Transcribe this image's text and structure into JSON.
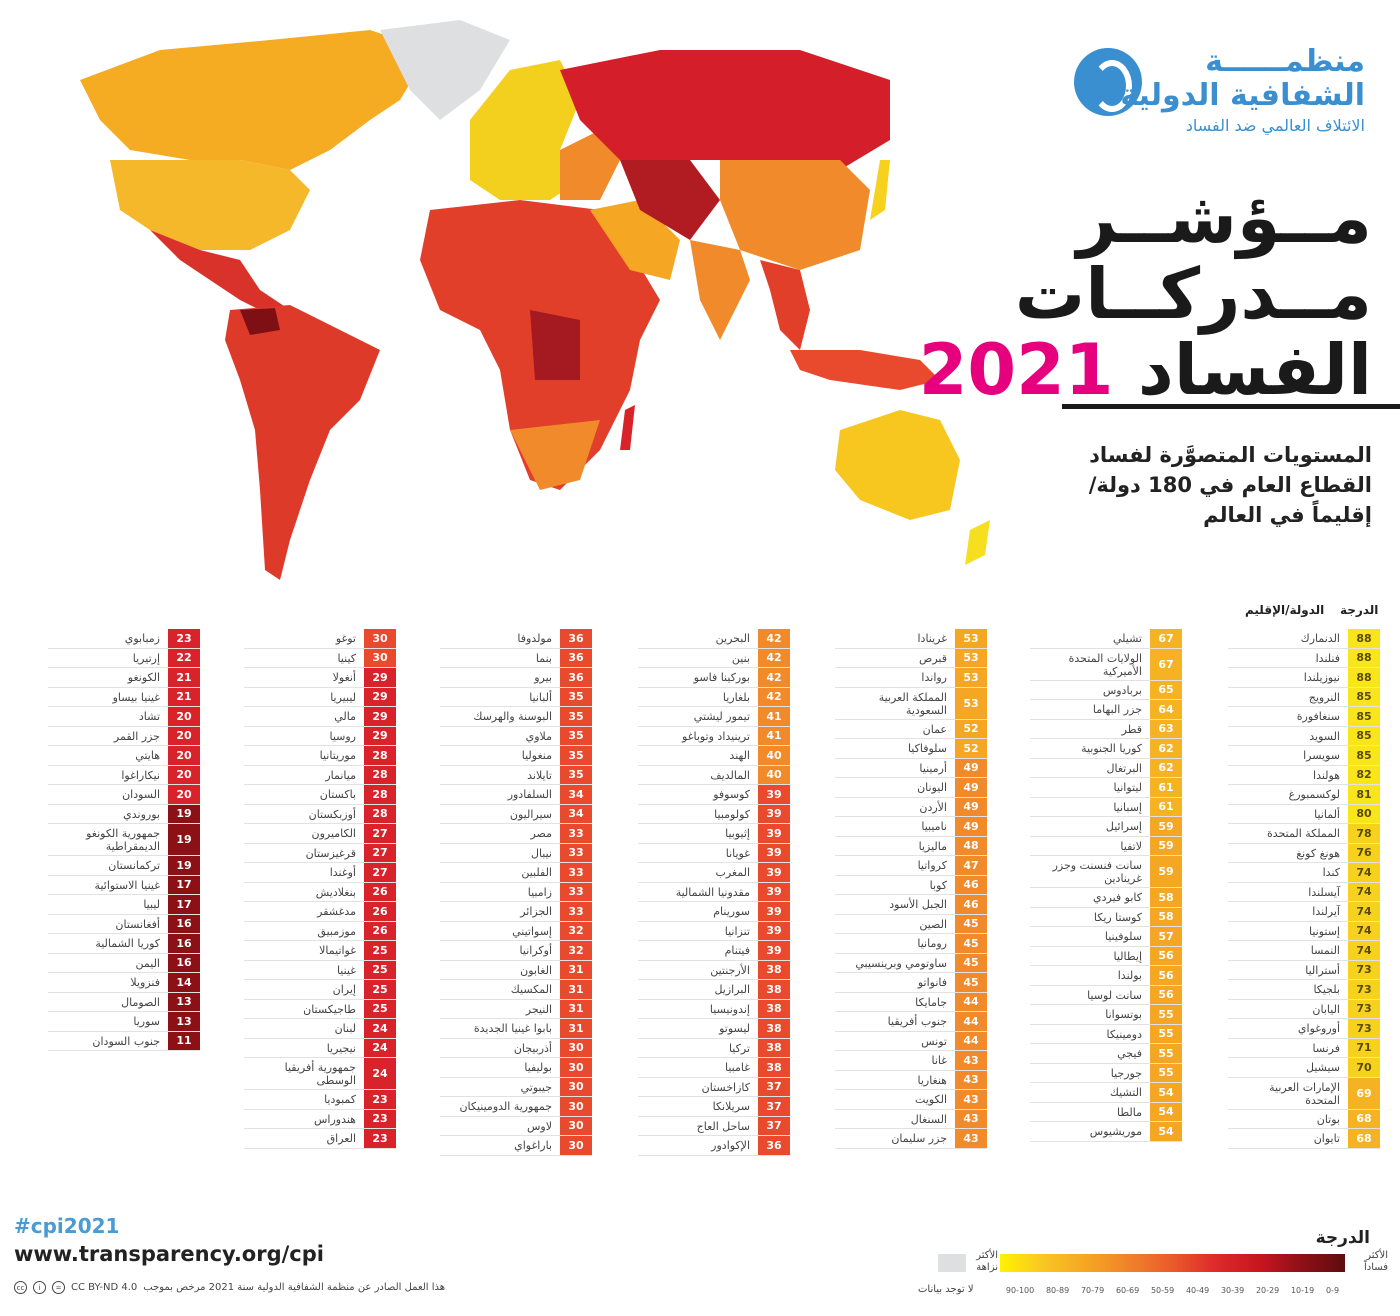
{
  "logo": {
    "line1": "منظمــــــة",
    "line2": "الشفافية الدولية",
    "line3": "الائتلاف العالمي ضد الفساد"
  },
  "title": {
    "line1": "مــؤشــر",
    "line2": "مــدركــات",
    "line3": "الفساد",
    "year": "2021"
  },
  "subtitle": "المستويات المتصوَّرة لفساد القطاع العام في 180 دولة/ إقليماً في العالم",
  "table_headers": {
    "score": "الدرجة",
    "country": "الدولة/الإقليم"
  },
  "score_colors": {
    "80-89": "#f8e51c",
    "70-79": "#f6d21f",
    "60-69": "#f5b324",
    "50-59": "#f5a623",
    "40-49": "#f08a2b",
    "30-39": "#e9492c",
    "20-29": "#d9232b",
    "10-19": "#8c1117",
    "0-9": "#5e0c10"
  },
  "columns": [
    [
      {
        "n": "الدنمارك",
        "s": 88
      },
      {
        "n": "فنلندا",
        "s": 88
      },
      {
        "n": "نيوزيلندا",
        "s": 88
      },
      {
        "n": "النرويج",
        "s": 85
      },
      {
        "n": "سنغافورة",
        "s": 85
      },
      {
        "n": "السويد",
        "s": 85
      },
      {
        "n": "سويسرا",
        "s": 85
      },
      {
        "n": "هولندا",
        "s": 82
      },
      {
        "n": "لوكسمبورغ",
        "s": 81
      },
      {
        "n": "ألمانيا",
        "s": 80
      },
      {
        "n": "المملكة المتحدة",
        "s": 78
      },
      {
        "n": "هونغ كونغ",
        "s": 76
      },
      {
        "n": "كندا",
        "s": 74
      },
      {
        "n": "آيسلندا",
        "s": 74
      },
      {
        "n": "آيرلندا",
        "s": 74
      },
      {
        "n": "إستونيا",
        "s": 74
      },
      {
        "n": "النمسا",
        "s": 74
      },
      {
        "n": "أستراليا",
        "s": 73
      },
      {
        "n": "بلجيكا",
        "s": 73
      },
      {
        "n": "اليابان",
        "s": 73
      },
      {
        "n": "أوروغواي",
        "s": 73
      },
      {
        "n": "فرنسا",
        "s": 71
      },
      {
        "n": "سيشيل",
        "s": 70
      },
      {
        "n": "الإمارات العربية المتحدة",
        "s": 69
      },
      {
        "n": "بوتان",
        "s": 68
      },
      {
        "n": "تايوان",
        "s": 68
      }
    ],
    [
      {
        "n": "تشيلي",
        "s": 67
      },
      {
        "n": "الولايات المتحدة الأميركية",
        "s": 67
      },
      {
        "n": "بربادوس",
        "s": 65
      },
      {
        "n": "جزر البهاما",
        "s": 64
      },
      {
        "n": "قطر",
        "s": 63
      },
      {
        "n": "كوريا الجنوبية",
        "s": 62
      },
      {
        "n": "البرتغال",
        "s": 62
      },
      {
        "n": "ليتوانيا",
        "s": 61
      },
      {
        "n": "إسبانيا",
        "s": 61
      },
      {
        "n": "إسرائيل",
        "s": 59
      },
      {
        "n": "لاتفيا",
        "s": 59
      },
      {
        "n": "سانت فنسنت وجزر غرينادين",
        "s": 59
      },
      {
        "n": "كابو فيردي",
        "s": 58
      },
      {
        "n": "كوستا ريكا",
        "s": 58
      },
      {
        "n": "سلوفينيا",
        "s": 57
      },
      {
        "n": "إيطاليا",
        "s": 56
      },
      {
        "n": "بولندا",
        "s": 56
      },
      {
        "n": "سانت لوسيا",
        "s": 56
      },
      {
        "n": "بوتسوانا",
        "s": 55
      },
      {
        "n": "دومينيكا",
        "s": 55
      },
      {
        "n": "فيجي",
        "s": 55
      },
      {
        "n": "جورجيا",
        "s": 55
      },
      {
        "n": "التشيك",
        "s": 54
      },
      {
        "n": "مالطا",
        "s": 54
      },
      {
        "n": "موريشيوس",
        "s": 54
      }
    ],
    [
      {
        "n": "غرينادا",
        "s": 53
      },
      {
        "n": "قبرص",
        "s": 53
      },
      {
        "n": "رواندا",
        "s": 53
      },
      {
        "n": "المملكة العربية السعودية",
        "s": 53
      },
      {
        "n": "عمان",
        "s": 52
      },
      {
        "n": "سلوفاكيا",
        "s": 52
      },
      {
        "n": "أرمينيا",
        "s": 49
      },
      {
        "n": "اليونان",
        "s": 49
      },
      {
        "n": "الأردن",
        "s": 49
      },
      {
        "n": "ناميبيا",
        "s": 49
      },
      {
        "n": "ماليزيا",
        "s": 48
      },
      {
        "n": "كرواتيا",
        "s": 47
      },
      {
        "n": "كوبا",
        "s": 46
      },
      {
        "n": "الجبل الأسود",
        "s": 46
      },
      {
        "n": "الصين",
        "s": 45
      },
      {
        "n": "رومانيا",
        "s": 45
      },
      {
        "n": "ساوتومي وبرينسيبي",
        "s": 45
      },
      {
        "n": "فانواتو",
        "s": 45
      },
      {
        "n": "جامايكا",
        "s": 44
      },
      {
        "n": "جنوب أفريقيا",
        "s": 44
      },
      {
        "n": "تونس",
        "s": 44
      },
      {
        "n": "غانا",
        "s": 43
      },
      {
        "n": "هنغاريا",
        "s": 43
      },
      {
        "n": "الكويت",
        "s": 43
      },
      {
        "n": "السنغال",
        "s": 43
      },
      {
        "n": "جزر سليمان",
        "s": 43
      }
    ],
    [
      {
        "n": "البحرين",
        "s": 42
      },
      {
        "n": "بنين",
        "s": 42
      },
      {
        "n": "بوركينا فاسو",
        "s": 42
      },
      {
        "n": "بلغاريا",
        "s": 42
      },
      {
        "n": "تيمور ليشتي",
        "s": 41
      },
      {
        "n": "ترينيداد وتوباغو",
        "s": 41
      },
      {
        "n": "الهند",
        "s": 40
      },
      {
        "n": "المالديف",
        "s": 40
      },
      {
        "n": "كوسوفو",
        "s": 39
      },
      {
        "n": "كولومبيا",
        "s": 39
      },
      {
        "n": "إثيوبيا",
        "s": 39
      },
      {
        "n": "غويانا",
        "s": 39
      },
      {
        "n": "المغرب",
        "s": 39
      },
      {
        "n": "مقدونيا الشمالية",
        "s": 39
      },
      {
        "n": "سورينام",
        "s": 39
      },
      {
        "n": "تنزانيا",
        "s": 39
      },
      {
        "n": "فيتنام",
        "s": 39
      },
      {
        "n": "الأرجنتين",
        "s": 38
      },
      {
        "n": "البرازيل",
        "s": 38
      },
      {
        "n": "إندونيسيا",
        "s": 38
      },
      {
        "n": "ليسوتو",
        "s": 38
      },
      {
        "n": "تركيا",
        "s": 38
      },
      {
        "n": "غامبيا",
        "s": 38
      },
      {
        "n": "كازاخستان",
        "s": 37
      },
      {
        "n": "سريلانكا",
        "s": 37
      },
      {
        "n": "ساحل العاج",
        "s": 37
      },
      {
        "n": "الإكوادور",
        "s": 36
      }
    ],
    [
      {
        "n": "مولدوفا",
        "s": 36
      },
      {
        "n": "بنما",
        "s": 36
      },
      {
        "n": "بيرو",
        "s": 36
      },
      {
        "n": "ألبانيا",
        "s": 35
      },
      {
        "n": "البوسنة والهرسك",
        "s": 35
      },
      {
        "n": "ملاوي",
        "s": 35
      },
      {
        "n": "منغوليا",
        "s": 35
      },
      {
        "n": "تايلاند",
        "s": 35
      },
      {
        "n": "السلفادور",
        "s": 34
      },
      {
        "n": "سيراليون",
        "s": 34
      },
      {
        "n": "مصر",
        "s": 33
      },
      {
        "n": "نيبال",
        "s": 33
      },
      {
        "n": "الفلبين",
        "s": 33
      },
      {
        "n": "زامبيا",
        "s": 33
      },
      {
        "n": "الجزائر",
        "s": 33
      },
      {
        "n": "إسواتيني",
        "s": 32
      },
      {
        "n": "أوكرانيا",
        "s": 32
      },
      {
        "n": "الغابون",
        "s": 31
      },
      {
        "n": "المكسيك",
        "s": 31
      },
      {
        "n": "النيجر",
        "s": 31
      },
      {
        "n": "بابوا غينيا الجديدة",
        "s": 31
      },
      {
        "n": "أذربيجان",
        "s": 30
      },
      {
        "n": "بوليفيا",
        "s": 30
      },
      {
        "n": "جيبوتي",
        "s": 30
      },
      {
        "n": "جمهورية الدومينيكان",
        "s": 30
      },
      {
        "n": "لاوس",
        "s": 30
      },
      {
        "n": "باراغواي",
        "s": 30
      }
    ],
    [
      {
        "n": "توغو",
        "s": 30
      },
      {
        "n": "كينيا",
        "s": 30
      },
      {
        "n": "أنغولا",
        "s": 29
      },
      {
        "n": "ليبيريا",
        "s": 29
      },
      {
        "n": "مالي",
        "s": 29
      },
      {
        "n": "روسيا",
        "s": 29
      },
      {
        "n": "موريتانيا",
        "s": 28
      },
      {
        "n": "ميانمار",
        "s": 28
      },
      {
        "n": "باكستان",
        "s": 28
      },
      {
        "n": "أوزبكستان",
        "s": 28
      },
      {
        "n": "الكاميرون",
        "s": 27
      },
      {
        "n": "قرغيزستان",
        "s": 27
      },
      {
        "n": "أوغندا",
        "s": 27
      },
      {
        "n": "بنغلاديش",
        "s": 26
      },
      {
        "n": "مدغشقر",
        "s": 26
      },
      {
        "n": "موزمبيق",
        "s": 26
      },
      {
        "n": "غواتيمالا",
        "s": 25
      },
      {
        "n": "غينيا",
        "s": 25
      },
      {
        "n": "إيران",
        "s": 25
      },
      {
        "n": "طاجيكستان",
        "s": 25
      },
      {
        "n": "لبنان",
        "s": 24
      },
      {
        "n": "نيجيريا",
        "s": 24
      },
      {
        "n": "جمهورية أفريقيا الوسطى",
        "s": 24
      },
      {
        "n": "كمبوديا",
        "s": 23
      },
      {
        "n": "هندوراس",
        "s": 23
      },
      {
        "n": "العراق",
        "s": 23
      }
    ],
    [
      {
        "n": "زمبابوي",
        "s": 23
      },
      {
        "n": "إرتيريا",
        "s": 22
      },
      {
        "n": "الكونغو",
        "s": 21
      },
      {
        "n": "غينيا بيساو",
        "s": 21
      },
      {
        "n": "تشاد",
        "s": 20
      },
      {
        "n": "جزر القمر",
        "s": 20
      },
      {
        "n": "هايتي",
        "s": 20
      },
      {
        "n": "نيكاراغوا",
        "s": 20
      },
      {
        "n": "السودان",
        "s": 20
      },
      {
        "n": "بوروندي",
        "s": 19
      },
      {
        "n": "جمهورية الكونغو الديمقراطية",
        "s": 19
      },
      {
        "n": "تركمانستان",
        "s": 19
      },
      {
        "n": "غينيا الاستوائية",
        "s": 17
      },
      {
        "n": "ليبيا",
        "s": 17
      },
      {
        "n": "أفغانستان",
        "s": 16
      },
      {
        "n": "كوريا الشمالية",
        "s": 16
      },
      {
        "n": "اليمن",
        "s": 16
      },
      {
        "n": "فنزويلا",
        "s": 14
      },
      {
        "n": "الصومال",
        "s": 13
      },
      {
        "n": "سوريا",
        "s": 13
      },
      {
        "n": "جنوب السودان",
        "s": 11
      }
    ]
  ],
  "footer": {
    "hashtag": "#cpi2021",
    "url": "www.transparency.org/cpi",
    "license": "CC BY-ND 4.0",
    "license_text": "هذا العمل الصادر عن منظمة الشفافية الدولية سنة 2021 مرخص بموجب"
  },
  "legend": {
    "title": "الدرجة",
    "most_corrupt": "الأكثر فساداً",
    "least_corrupt": "الأكثر نزاهة",
    "no_data": "لا توجد بيانات",
    "ranges": [
      "90-100",
      "80-89",
      "70-79",
      "60-69",
      "50-59",
      "40-49",
      "30-39",
      "20-29",
      "10-19",
      "0-9"
    ]
  }
}
